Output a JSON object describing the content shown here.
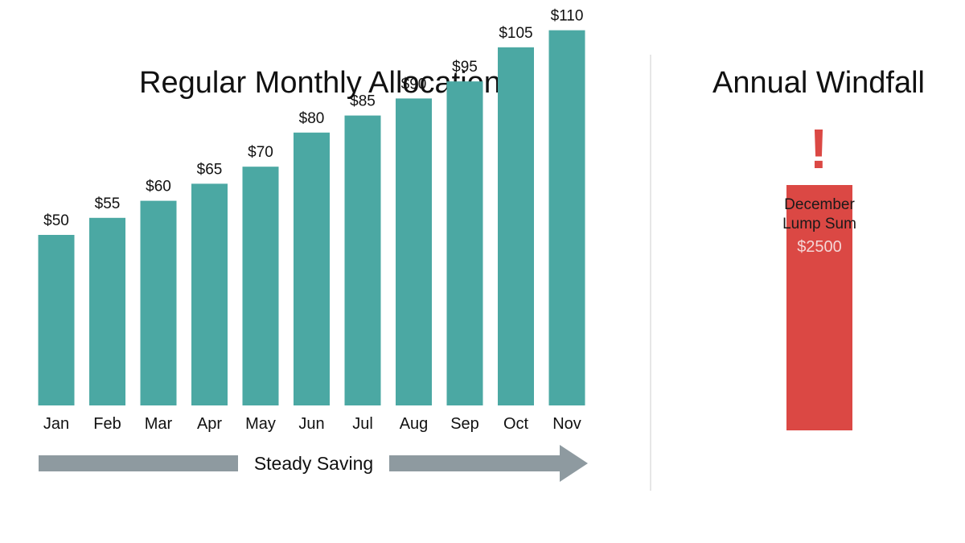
{
  "chart_data": [
    {
      "type": "bar",
      "title": "Regular Monthly Allocation",
      "categories": [
        "Jan",
        "Feb",
        "Mar",
        "Apr",
        "May",
        "Jun",
        "Jul",
        "Aug",
        "Sep",
        "Oct",
        "Nov"
      ],
      "values": [
        50,
        55,
        60,
        65,
        70,
        80,
        85,
        90,
        95,
        105,
        110
      ],
      "value_labels": [
        "$50",
        "$55",
        "$60",
        "$65",
        "$70",
        "$80",
        "$85",
        "$90",
        "$95",
        "$105",
        "$110"
      ],
      "unit": "$",
      "ylim": [
        0,
        120
      ],
      "grid": false,
      "color": "#4ba8a3",
      "trend_label": "Steady Saving",
      "trend_color": "#8e9aa0"
    },
    {
      "type": "bar",
      "title": "Annual Windfall",
      "categories": [
        "December Lump Sum"
      ],
      "values": [
        2500
      ],
      "value_labels": [
        "$2500"
      ],
      "unit": "$",
      "grid": false,
      "color": "#db4844",
      "alert_symbol": "!"
    }
  ]
}
